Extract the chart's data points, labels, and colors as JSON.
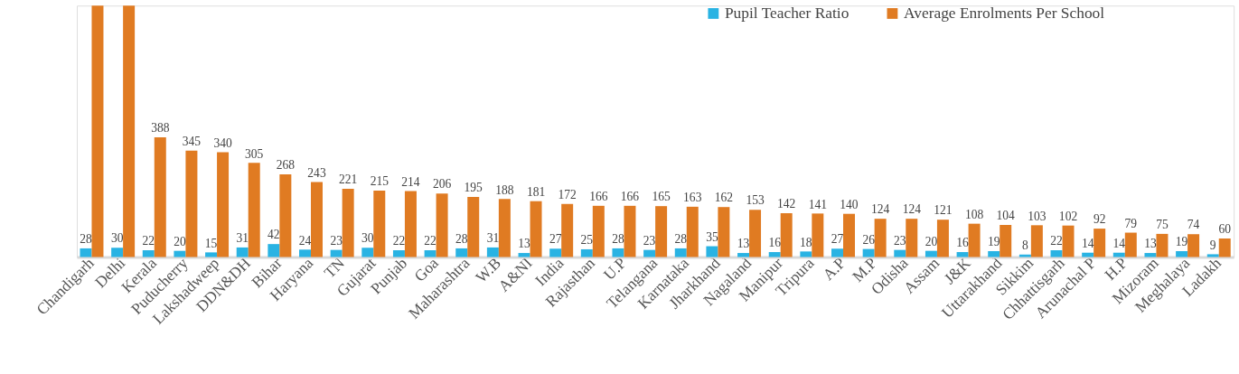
{
  "chart_data": {
    "type": "bar",
    "categories": [
      "Chandigarh",
      "Delhi",
      "Kerala",
      "Puducherry",
      "Lakshadweep",
      "DDN&DH",
      "Bihar",
      "Haryana",
      "TN",
      "Gujarat",
      "Punjab",
      "Goa",
      "Maharashtra",
      "W.B",
      "A&NI",
      "India",
      "Rajasthan",
      "U.P",
      "Telangana",
      "Karnataka",
      "Jharkhand",
      "Nagaland",
      "Manipur",
      "Tripura",
      "A.P",
      "M.P",
      "Odisha",
      "Assam",
      "J&K",
      "Uttarakhand",
      "Sikkim",
      "Chhattisgarh",
      "Arunachal P",
      "H.P",
      "Mizoram",
      "Meghalaya",
      "Ladakh"
    ],
    "series": [
      {
        "name": "Pupil Teacher Ratio",
        "color": "#29b3e3",
        "values": [
          28,
          30,
          22,
          20,
          15,
          31,
          42,
          24,
          23,
          30,
          22,
          22,
          28,
          31,
          13,
          27,
          25,
          28,
          23,
          28,
          35,
          13,
          16,
          18,
          27,
          26,
          23,
          20,
          16,
          19,
          8,
          22,
          14,
          14,
          13,
          19,
          9
        ],
        "value_labels": [
          "28",
          "30",
          "22",
          "20",
          "15",
          "31",
          "42",
          "24",
          "23",
          "30",
          "22",
          "22",
          "28",
          "31",
          "13",
          "27",
          "25",
          "28",
          "23",
          "28",
          "35",
          "13",
          "16",
          "18",
          "27",
          "26",
          "23",
          "20",
          "16",
          "19",
          "8",
          "22",
          "14",
          "14",
          "13",
          "19",
          "9"
        ]
      },
      {
        "name": "Average Enrolments Per School",
        "color": "#e07b22",
        "values": [
          815,
          815,
          388,
          345,
          340,
          305,
          268,
          243,
          221,
          215,
          214,
          206,
          195,
          188,
          181,
          172,
          166,
          166,
          165,
          163,
          162,
          153,
          142,
          141,
          140,
          124,
          124,
          121,
          108,
          104,
          103,
          102,
          92,
          79,
          75,
          74,
          60
        ],
        "value_labels": [
          null,
          null,
          "388",
          "345",
          "340",
          "305",
          "268",
          "243",
          "221",
          "215",
          "214",
          "206",
          "195",
          "188",
          "181",
          "172",
          "166",
          "166",
          "165",
          "163",
          "162",
          "153",
          "142",
          "141",
          "140",
          "124",
          "124",
          "121",
          "108",
          "104",
          "103",
          "102",
          "92",
          "79",
          "75",
          "74",
          "60"
        ]
      }
    ],
    "ylim": [
      0,
      815
    ],
    "tick_labels": "x",
    "grid": false,
    "legend": "top right"
  }
}
